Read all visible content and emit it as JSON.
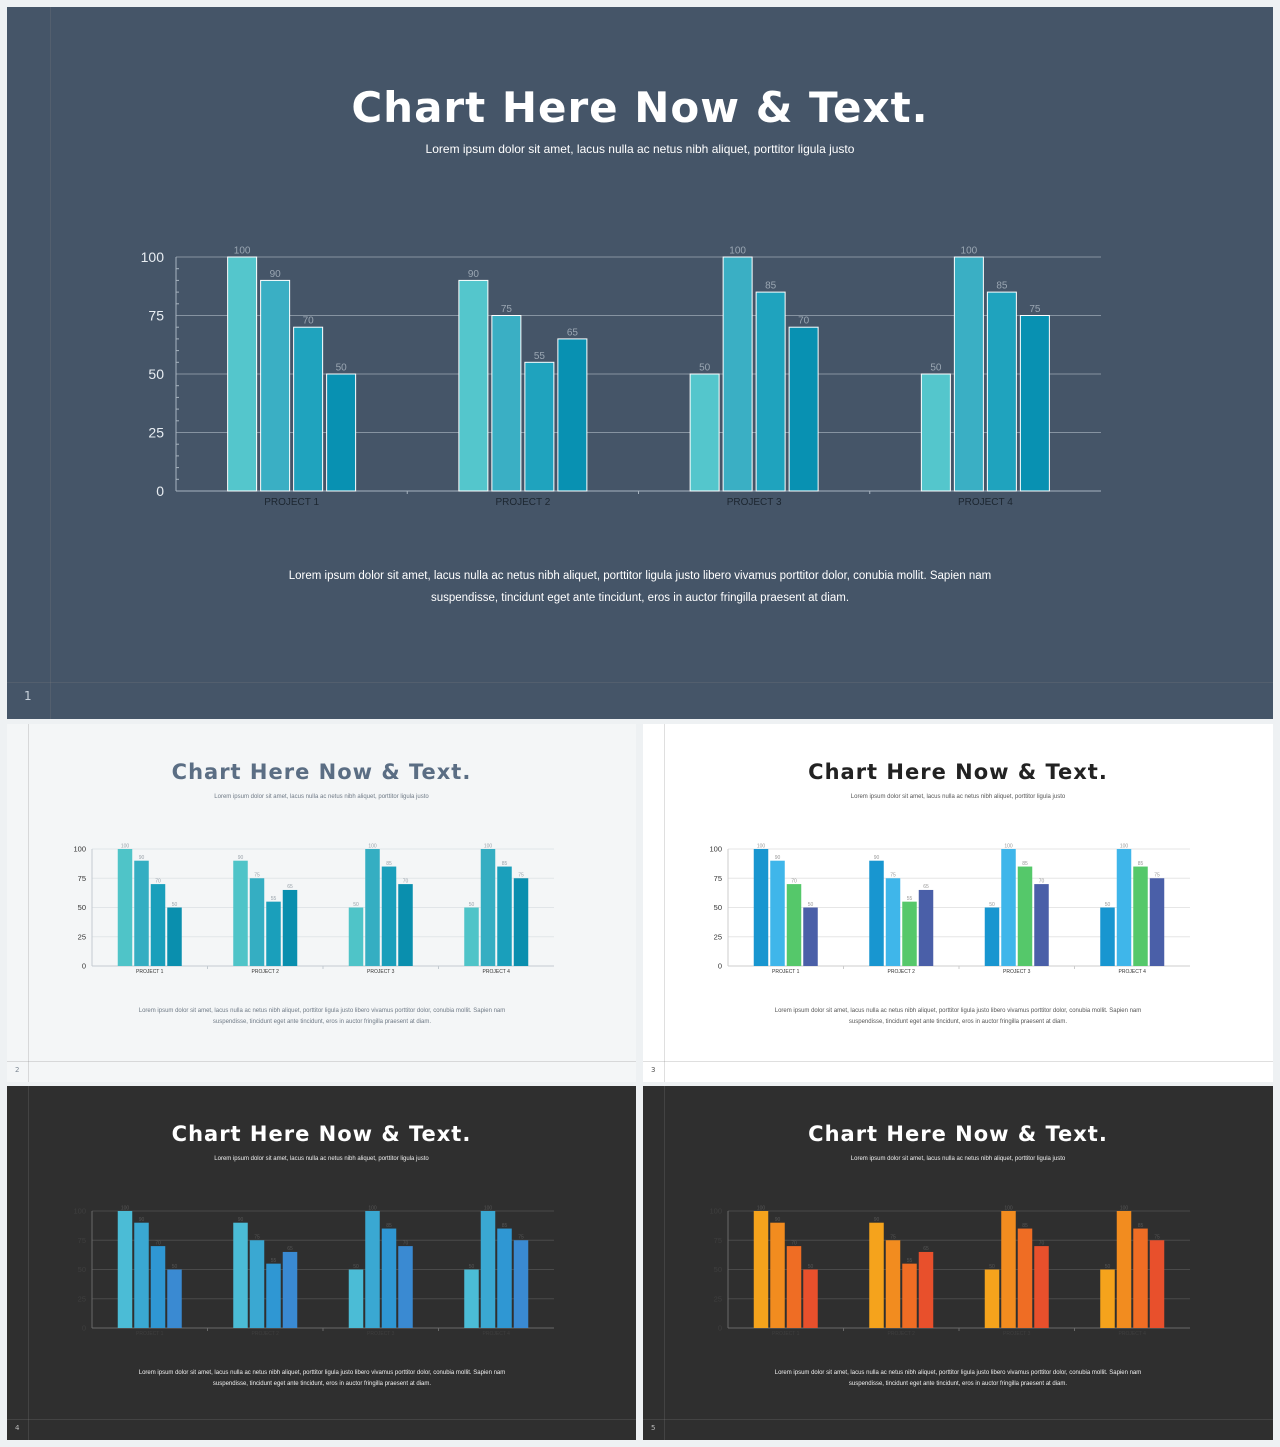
{
  "slides": [
    {
      "number": "1",
      "title": "Chart Here Now & Text.",
      "subtitle": "Lorem  ipsum dolor sit amet, lacus nulla ac netus nibh aliquet, porttitor ligula justo",
      "body_line1": "Lorem ipsum dolor sit amet, lacus nulla ac netus nibh aliquet, porttitor ligula justo libero vivamus porttitor dolor, conubia mollit. Sapien nam",
      "body_line2": "suspendisse, tincidunt eget ante tincidunt, eros in auctor fringilla praesent at diam.",
      "colors": {
        "background": "#455568",
        "bars": [
          "#54c6cc",
          "#3aafc4",
          "#1fa3be",
          "#0891b2"
        ],
        "labels": "#9aa6b2",
        "ticks": "#e8edf2",
        "categories": "#1c2630"
      }
    },
    {
      "number": "2",
      "title": "Chart Here Now & Text.",
      "subtitle": "Lorem  ipsum dolor sit amet, lacus nulla ac netus nibh aliquet, porttitor ligula justo",
      "body_line1": "Lorem ipsum dolor sit amet, lacus nulla ac netus nibh aliquet, porttitor ligula justo libero vivamus porttitor dolor, conubia mollit. Sapien nam",
      "body_line2": "suspendisse, tincidunt eget ante tincidunt, eros in auctor fringilla praesent at diam.",
      "colors": {
        "background": "#f4f6f7",
        "bars": [
          "#4fc4c8",
          "#35aec2",
          "#1a9fbb",
          "#0a8fae"
        ],
        "labels": "#9aa3ab",
        "ticks": "#333333",
        "categories": "#333333"
      }
    },
    {
      "number": "3",
      "title": "Chart Here Now & Text.",
      "subtitle": "Lorem  ipsum dolor sit amet, lacus nulla ac netus nibh aliquet, porttitor ligula justo",
      "body_line1": "Lorem ipsum dolor sit amet, lacus nulla ac netus nibh aliquet, porttitor ligula justo libero vivamus porttitor dolor, conubia mollit. Sapien nam",
      "body_line2": "suspendisse, tincidunt eget ante tincidunt, eros in auctor fringilla praesent at diam.",
      "colors": {
        "background": "#ffffff",
        "bars": [
          "#1896d0",
          "#3fb6ea",
          "#55c86a",
          "#4a5fa8"
        ],
        "labels": "#999999",
        "ticks": "#333333",
        "categories": "#333333"
      }
    },
    {
      "number": "4",
      "title": "Chart Here Now & Text.",
      "subtitle": "Lorem  ipsum dolor sit amet, lacus nulla ac netus nibh aliquet, porttitor ligula justo",
      "body_line1": "Lorem ipsum dolor sit amet, lacus nulla ac netus nibh aliquet, porttitor ligula justo libero vivamus porttitor dolor, conubia mollit. Sapien nam",
      "body_line2": "suspendisse, tincidunt eget ante tincidunt, eros in auctor fringilla praesent at diam.",
      "colors": {
        "background": "#2f2f2f",
        "bars": [
          "#4bbcd6",
          "#3aa8d2",
          "#2f97d3",
          "#3a8ad2"
        ],
        "labels": "#555555",
        "ticks": "#3f3f3f",
        "categories": "#3f3f3f"
      }
    },
    {
      "number": "5",
      "title": "Chart Here Now & Text.",
      "subtitle": "Lorem  ipsum dolor sit amet, lacus nulla ac netus nibh aliquet, porttitor ligula justo",
      "body_line1": "Lorem ipsum dolor sit amet, lacus nulla ac netus nibh aliquet, porttitor ligula justo libero vivamus porttitor dolor, conubia mollit. Sapien nam",
      "body_line2": "suspendisse, tincidunt eget ante tincidunt, eros in auctor fringilla praesent at diam.",
      "colors": {
        "background": "#2f2f2f",
        "bars": [
          "#f5a31c",
          "#f28c1f",
          "#ef6d24",
          "#e8502c"
        ],
        "labels": "#555555",
        "ticks": "#3f3f3f",
        "categories": "#3f3f3f"
      }
    }
  ],
  "chart_data": {
    "type": "bar",
    "categories": [
      "PROJECT 1",
      "PROJECT 2",
      "PROJECT 3",
      "PROJECT 4"
    ],
    "series": [
      {
        "values": [
          100,
          90,
          50,
          50
        ]
      },
      {
        "values": [
          90,
          75,
          100,
          100
        ]
      },
      {
        "values": [
          70,
          55,
          85,
          85
        ]
      },
      {
        "values": [
          50,
          65,
          70,
          75
        ]
      }
    ],
    "yticks": [
      0,
      25,
      50,
      75,
      100
    ],
    "ylim": [
      0,
      100
    ],
    "grid": true,
    "data_labels": true
  }
}
